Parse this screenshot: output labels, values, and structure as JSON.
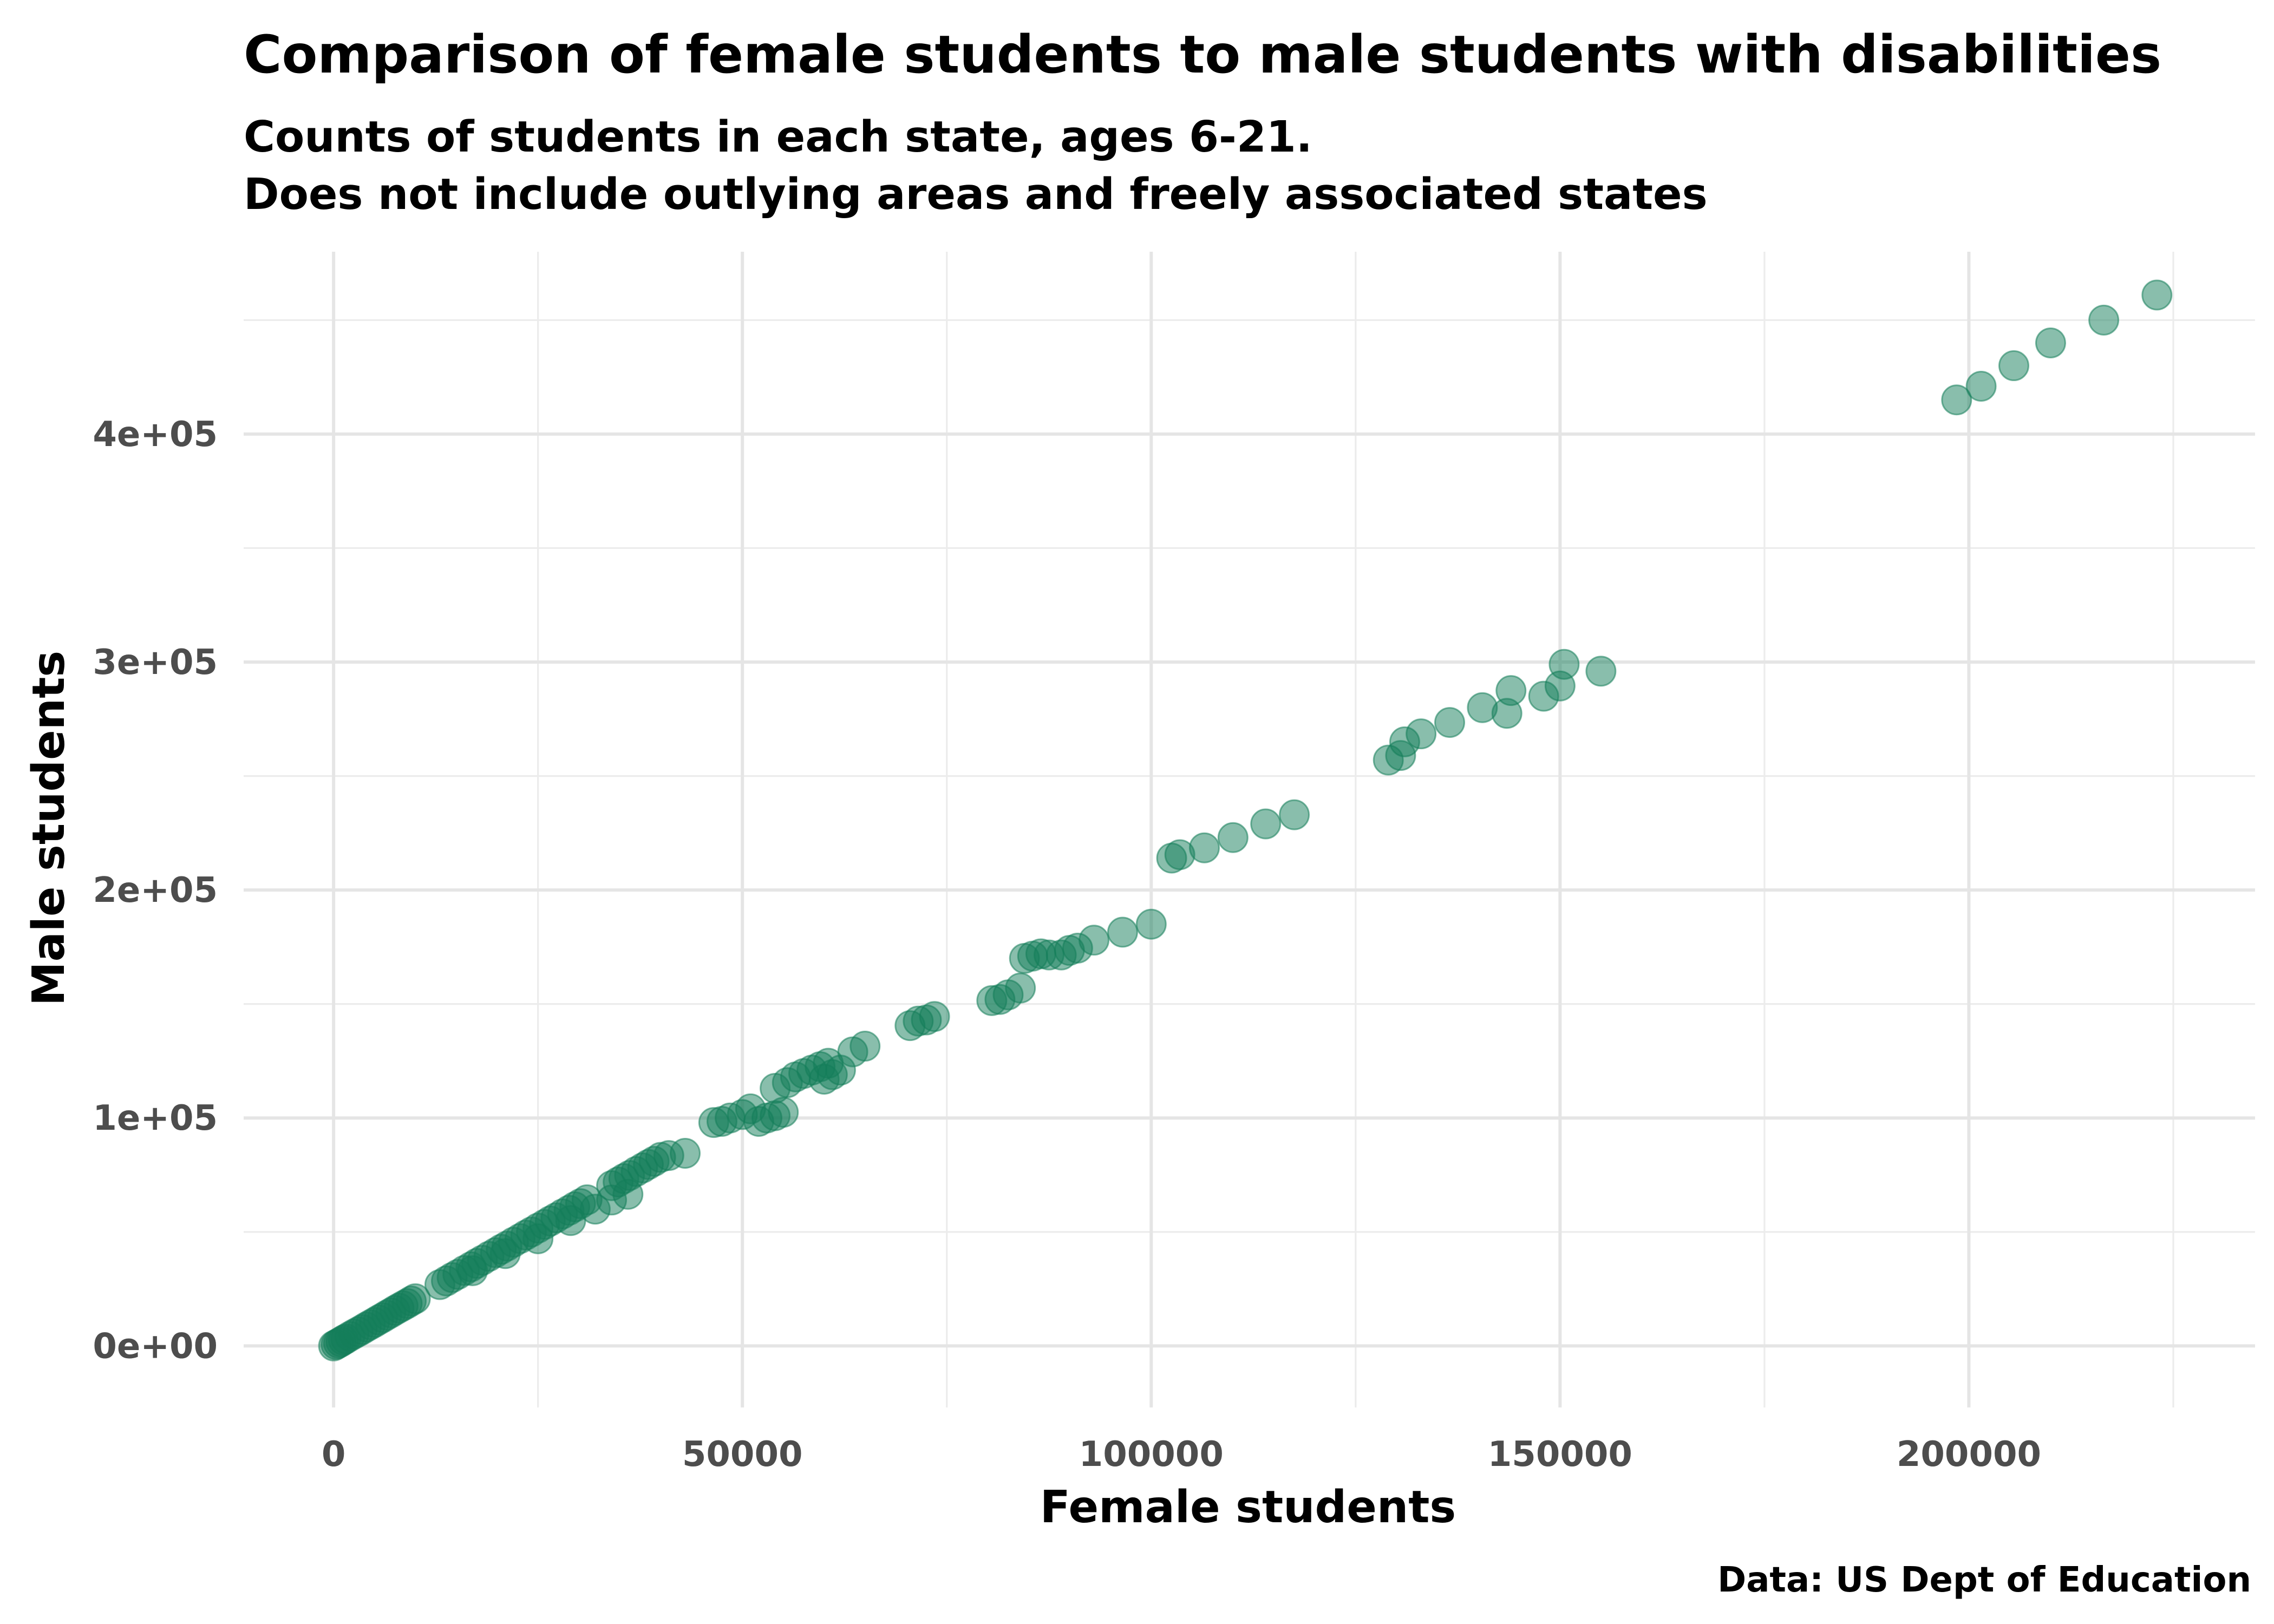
{
  "chart_data": {
    "type": "scatter",
    "title": "Comparison of female students to male students with disabilities",
    "subtitle_lines": [
      "Counts of students in each state, ages 6-21.",
      "Does not include outlying areas and freely associated states"
    ],
    "xlabel": "Female students",
    "ylabel": "Male students",
    "caption": "Data: US Dept of Education",
    "xlim": [
      -11000,
      235000
    ],
    "ylim": [
      -27000,
      480000
    ],
    "x_ticks": [
      0,
      50000,
      100000,
      150000,
      200000
    ],
    "x_tick_labels": [
      "0",
      "50000",
      "100000",
      "150000",
      "200000"
    ],
    "y_ticks": [
      0,
      100000,
      200000,
      300000,
      400000
    ],
    "y_tick_labels": [
      "0e+00",
      "1e+05",
      "2e+05",
      "3e+05",
      "4e+05"
    ],
    "grid": true,
    "marker_color": "#147d5a",
    "marker_opacity": 0.5,
    "points": [
      [
        0,
        0
      ],
      [
        300,
        600
      ],
      [
        600,
        1200
      ],
      [
        900,
        1800
      ],
      [
        1200,
        2500
      ],
      [
        1500,
        3100
      ],
      [
        2000,
        4200
      ],
      [
        2500,
        5200
      ],
      [
        3000,
        6200
      ],
      [
        3500,
        7200
      ],
      [
        4000,
        8300
      ],
      [
        4500,
        9300
      ],
      [
        5000,
        10300
      ],
      [
        5500,
        11400
      ],
      [
        6000,
        12400
      ],
      [
        6500,
        13500
      ],
      [
        7000,
        14500
      ],
      [
        7500,
        15600
      ],
      [
        8000,
        16600
      ],
      [
        8500,
        17600
      ],
      [
        9000,
        18600
      ],
      [
        9500,
        19700
      ],
      [
        10000,
        20700
      ],
      [
        13000,
        26900
      ],
      [
        13800,
        28500
      ],
      [
        14500,
        30000
      ],
      [
        15200,
        31400
      ],
      [
        16000,
        33100
      ],
      [
        16800,
        34700
      ],
      [
        17500,
        36200
      ],
      [
        18200,
        37600
      ],
      [
        19000,
        39300
      ],
      [
        19800,
        40900
      ],
      [
        20500,
        42400
      ],
      [
        21200,
        43800
      ],
      [
        22000,
        45500
      ],
      [
        22800,
        47100
      ],
      [
        23500,
        48600
      ],
      [
        24200,
        50000
      ],
      [
        25000,
        51700
      ],
      [
        25800,
        53300
      ],
      [
        26500,
        54800
      ],
      [
        27200,
        56200
      ],
      [
        28000,
        57900
      ],
      [
        28800,
        59500
      ],
      [
        29500,
        61000
      ],
      [
        30200,
        62400
      ],
      [
        31000,
        64100
      ],
      [
        17000,
        33000
      ],
      [
        21000,
        40500
      ],
      [
        25000,
        47000
      ],
      [
        29000,
        55000
      ],
      [
        32000,
        60000
      ],
      [
        34000,
        70300
      ],
      [
        34800,
        71900
      ],
      [
        35500,
        73400
      ],
      [
        36200,
        74800
      ],
      [
        37000,
        76500
      ],
      [
        37800,
        78100
      ],
      [
        38500,
        79600
      ],
      [
        39200,
        81000
      ],
      [
        40000,
        82700
      ],
      [
        41000,
        83500
      ],
      [
        43000,
        84500
      ],
      [
        34000,
        64000
      ],
      [
        36000,
        66500
      ],
      [
        46500,
        98000
      ],
      [
        47500,
        98500
      ],
      [
        48500,
        100000
      ],
      [
        50000,
        101500
      ],
      [
        51000,
        104000
      ],
      [
        52000,
        98500
      ],
      [
        53000,
        100000
      ],
      [
        54000,
        101000
      ],
      [
        55000,
        102500
      ],
      [
        54000,
        113000
      ],
      [
        55500,
        115500
      ],
      [
        56500,
        118000
      ],
      [
        57500,
        119500
      ],
      [
        58500,
        121000
      ],
      [
        59500,
        122500
      ],
      [
        60500,
        124000
      ],
      [
        60000,
        117000
      ],
      [
        61000,
        119000
      ],
      [
        62000,
        121000
      ],
      [
        63500,
        129000
      ],
      [
        65000,
        131500
      ],
      [
        70500,
        140500
      ],
      [
        71500,
        142500
      ],
      [
        72500,
        143000
      ],
      [
        73500,
        144500
      ],
      [
        80500,
        151500
      ],
      [
        81500,
        152000
      ],
      [
        82500,
        154000
      ],
      [
        84000,
        157000
      ],
      [
        84500,
        170000
      ],
      [
        85500,
        171000
      ],
      [
        86500,
        172000
      ],
      [
        87500,
        171500
      ],
      [
        89000,
        171500
      ],
      [
        90000,
        173500
      ],
      [
        91000,
        174500
      ],
      [
        93000,
        178000
      ],
      [
        96500,
        181500
      ],
      [
        100000,
        185000
      ],
      [
        102500,
        214000
      ],
      [
        103500,
        215500
      ],
      [
        106500,
        218500
      ],
      [
        110000,
        223000
      ],
      [
        114000,
        229000
      ],
      [
        117500,
        233000
      ],
      [
        129000,
        257000
      ],
      [
        130500,
        259000
      ],
      [
        131000,
        265000
      ],
      [
        133000,
        268500
      ],
      [
        136500,
        273500
      ],
      [
        140500,
        280000
      ],
      [
        143500,
        277500
      ],
      [
        144000,
        287500
      ],
      [
        148000,
        285000
      ],
      [
        150000,
        289500
      ],
      [
        150500,
        299000
      ],
      [
        155000,
        296000
      ],
      [
        198500,
        415000
      ],
      [
        201500,
        421000
      ],
      [
        205500,
        430000
      ],
      [
        210000,
        440000
      ],
      [
        216500,
        450000
      ],
      [
        223000,
        461000
      ]
    ]
  }
}
